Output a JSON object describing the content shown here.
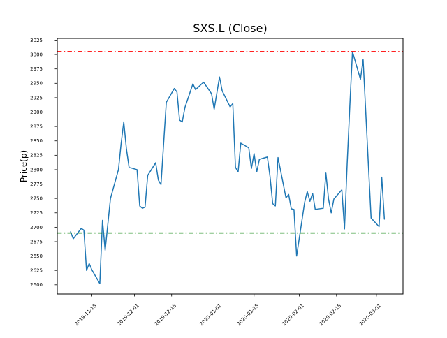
{
  "chart_data": {
    "type": "line",
    "title": "SXS.L (Close)",
    "xlabel": "",
    "ylabel": "Price(p)",
    "grid": false,
    "legend": null,
    "ylim": [
      2584,
      3028
    ],
    "xlim_dates": [
      "2019-11-02",
      "2020-03-11"
    ],
    "yticks": [
      2600,
      2625,
      2650,
      2675,
      2700,
      2725,
      2750,
      2775,
      2800,
      2825,
      2850,
      2875,
      2900,
      2925,
      2950,
      2975,
      3000,
      3025
    ],
    "xticks": [
      "2019-11-15",
      "2019-12-01",
      "2019-12-15",
      "2020-01-01",
      "2020-01-15",
      "2020-02-01",
      "2020-02-15",
      "2020-03-01"
    ],
    "series": [
      {
        "name": "Close",
        "color": "#1f77b4",
        "dates": [
          "2019-11-07",
          "2019-11-08",
          "2019-11-11",
          "2019-11-12",
          "2019-11-13",
          "2019-11-14",
          "2019-11-15",
          "2019-11-18",
          "2019-11-19",
          "2019-11-20",
          "2019-11-21",
          "2019-11-22",
          "2019-11-25",
          "2019-11-26",
          "2019-11-27",
          "2019-11-28",
          "2019-11-29",
          "2019-12-02",
          "2019-12-03",
          "2019-12-04",
          "2019-12-05",
          "2019-12-06",
          "2019-12-09",
          "2019-12-10",
          "2019-12-11",
          "2019-12-12",
          "2019-12-13",
          "2019-12-16",
          "2019-12-17",
          "2019-12-18",
          "2019-12-19",
          "2019-12-20",
          "2019-12-23",
          "2019-12-24",
          "2019-12-27",
          "2019-12-30",
          "2019-12-31",
          "2020-01-02",
          "2020-01-03",
          "2020-01-06",
          "2020-01-07",
          "2020-01-08",
          "2020-01-09",
          "2020-01-10",
          "2020-01-13",
          "2020-01-14",
          "2020-01-15",
          "2020-01-16",
          "2020-01-17",
          "2020-01-20",
          "2020-01-21",
          "2020-01-22",
          "2020-01-23",
          "2020-01-24",
          "2020-01-27",
          "2020-01-28",
          "2020-01-29",
          "2020-01-30",
          "2020-01-31",
          "2020-02-03",
          "2020-02-04",
          "2020-02-05",
          "2020-02-06",
          "2020-02-07",
          "2020-02-10",
          "2020-02-11",
          "2020-02-12",
          "2020-02-13",
          "2020-02-14",
          "2020-02-17",
          "2020-02-18",
          "2020-02-19",
          "2020-02-20",
          "2020-02-21",
          "2020-02-24",
          "2020-02-25",
          "2020-02-26",
          "2020-02-27",
          "2020-02-28",
          "2020-03-02",
          "2020-03-03",
          "2020-03-04"
        ],
        "values": [
          2692,
          2680,
          2698,
          2695,
          2625,
          2637,
          2626,
          2602,
          2712,
          2660,
          2705,
          2750,
          2800,
          2845,
          2883,
          2836,
          2804,
          2800,
          2737,
          2733,
          2735,
          2790,
          2812,
          2782,
          2774,
          2846,
          2917,
          2941,
          2935,
          2886,
          2883,
          2908,
          2949,
          2939,
          2952,
          2932,
          2905,
          2961,
          2937,
          2909,
          2915,
          2804,
          2796,
          2846,
          2838,
          2802,
          2828,
          2796,
          2818,
          2822,
          2788,
          2741,
          2737,
          2821,
          2751,
          2757,
          2732,
          2731,
          2650,
          2743,
          2762,
          2745,
          2759,
          2731,
          2733,
          2794,
          2749,
          2725,
          2749,
          2765,
          2697,
          2810,
          2910,
          3005,
          2957,
          2991,
          2899,
          2807,
          2716,
          2701,
          2787,
          2714
        ]
      }
    ],
    "hlines": [
      {
        "name": "upper-reference",
        "value": 3005,
        "color": "#ff0000",
        "style": "dashdot"
      },
      {
        "name": "lower-reference",
        "value": 2690,
        "color": "#008000",
        "style": "dashdot"
      }
    ]
  }
}
